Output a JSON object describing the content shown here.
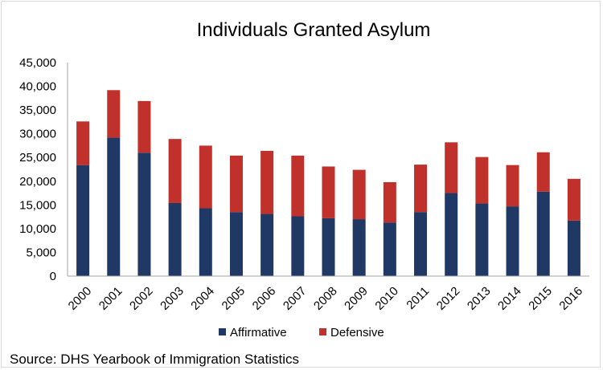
{
  "chart_data": {
    "type": "bar",
    "stacked": true,
    "title": "Individuals Granted Asylum",
    "categories": [
      "2000",
      "2001",
      "2002",
      "2003",
      "2004",
      "2005",
      "2006",
      "2007",
      "2008",
      "2009",
      "2010",
      "2011",
      "2012",
      "2013",
      "2014",
      "2015",
      "2016"
    ],
    "series": [
      {
        "name": "Affirmative",
        "color": "#203864",
        "values": [
          23400,
          29200,
          26000,
          15400,
          14300,
          13500,
          13100,
          12600,
          12200,
          12000,
          11300,
          13500,
          17500,
          15300,
          14700,
          17800,
          11700
        ]
      },
      {
        "name": "Defensive",
        "color": "#C0312B",
        "values": [
          9200,
          10000,
          10900,
          13500,
          13200,
          11900,
          13300,
          12800,
          10900,
          10400,
          8500,
          10000,
          10700,
          9800,
          8700,
          8300,
          8800
        ]
      }
    ],
    "yticks": [
      "0",
      "5,000",
      "10,000",
      "15,000",
      "20,000",
      "25,000",
      "30,000",
      "35,000",
      "40,000",
      "45,000"
    ],
    "ylim": [
      0,
      45000
    ],
    "xlabel": "",
    "ylabel": "",
    "legend": "bottom",
    "grid": false,
    "source": "Source: DHS Yearbook of Immigration Statistics"
  }
}
